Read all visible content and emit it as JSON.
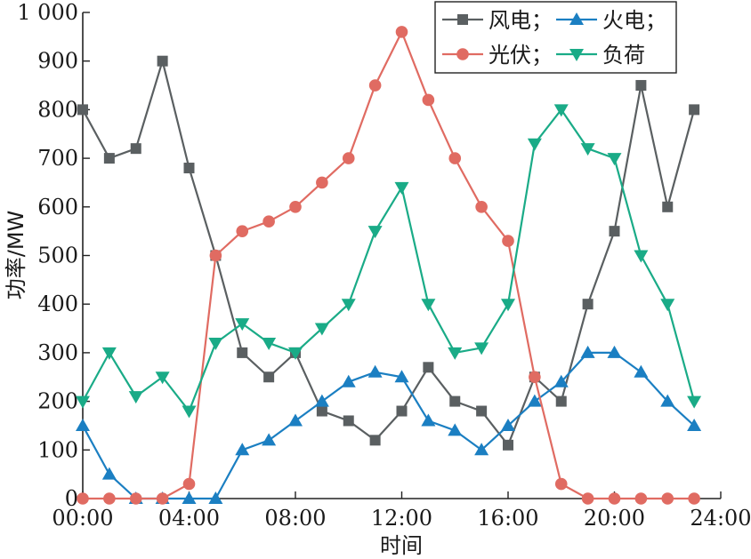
{
  "chart_data": {
    "type": "line",
    "title": "",
    "xlabel": "时间",
    "ylabel": "功率/MW",
    "x": [
      "00:00",
      "01:00",
      "02:00",
      "03:00",
      "04:00",
      "05:00",
      "06:00",
      "07:00",
      "08:00",
      "09:00",
      "10:00",
      "11:00",
      "12:00",
      "13:00",
      "14:00",
      "15:00",
      "16:00",
      "17:00",
      "18:00",
      "19:00",
      "20:00",
      "21:00",
      "22:00",
      "23:00"
    ],
    "x_ticks": [
      "00:00",
      "04:00",
      "08:00",
      "12:00",
      "16:00",
      "20:00",
      "24:00"
    ],
    "xlim": [
      0,
      24
    ],
    "ylim": [
      0,
      1000
    ],
    "y_ticks": [
      "0",
      "100",
      "200",
      "300",
      "400",
      "500",
      "600",
      "700",
      "800",
      "900",
      "1 000"
    ],
    "grid": false,
    "legend_position": "top-right",
    "series": [
      {
        "name": "风电；",
        "color": "#5a5f61",
        "marker": "square",
        "values": [
          800,
          700,
          720,
          900,
          680,
          500,
          300,
          250,
          300,
          180,
          160,
          120,
          180,
          270,
          200,
          180,
          110,
          250,
          200,
          400,
          550,
          850,
          600,
          800
        ]
      },
      {
        "name": "火电；",
        "color": "#1b7fc2",
        "marker": "triangle-up",
        "values": [
          150,
          50,
          0,
          0,
          0,
          0,
          100,
          120,
          160,
          200,
          240,
          260,
          250,
          160,
          140,
          100,
          150,
          200,
          240,
          300,
          300,
          260,
          200,
          150
        ]
      },
      {
        "name": "光伏；",
        "color": "#e06b62",
        "marker": "circle",
        "values": [
          0,
          0,
          0,
          0,
          30,
          500,
          550,
          570,
          600,
          650,
          700,
          850,
          960,
          820,
          700,
          600,
          530,
          250,
          30,
          0,
          0,
          0,
          0,
          0
        ]
      },
      {
        "name": "负荷",
        "color": "#1aab87",
        "marker": "triangle-down",
        "values": [
          200,
          300,
          210,
          250,
          180,
          320,
          360,
          320,
          300,
          350,
          400,
          550,
          640,
          400,
          300,
          310,
          400,
          730,
          800,
          720,
          700,
          500,
          400,
          200
        ]
      }
    ]
  }
}
